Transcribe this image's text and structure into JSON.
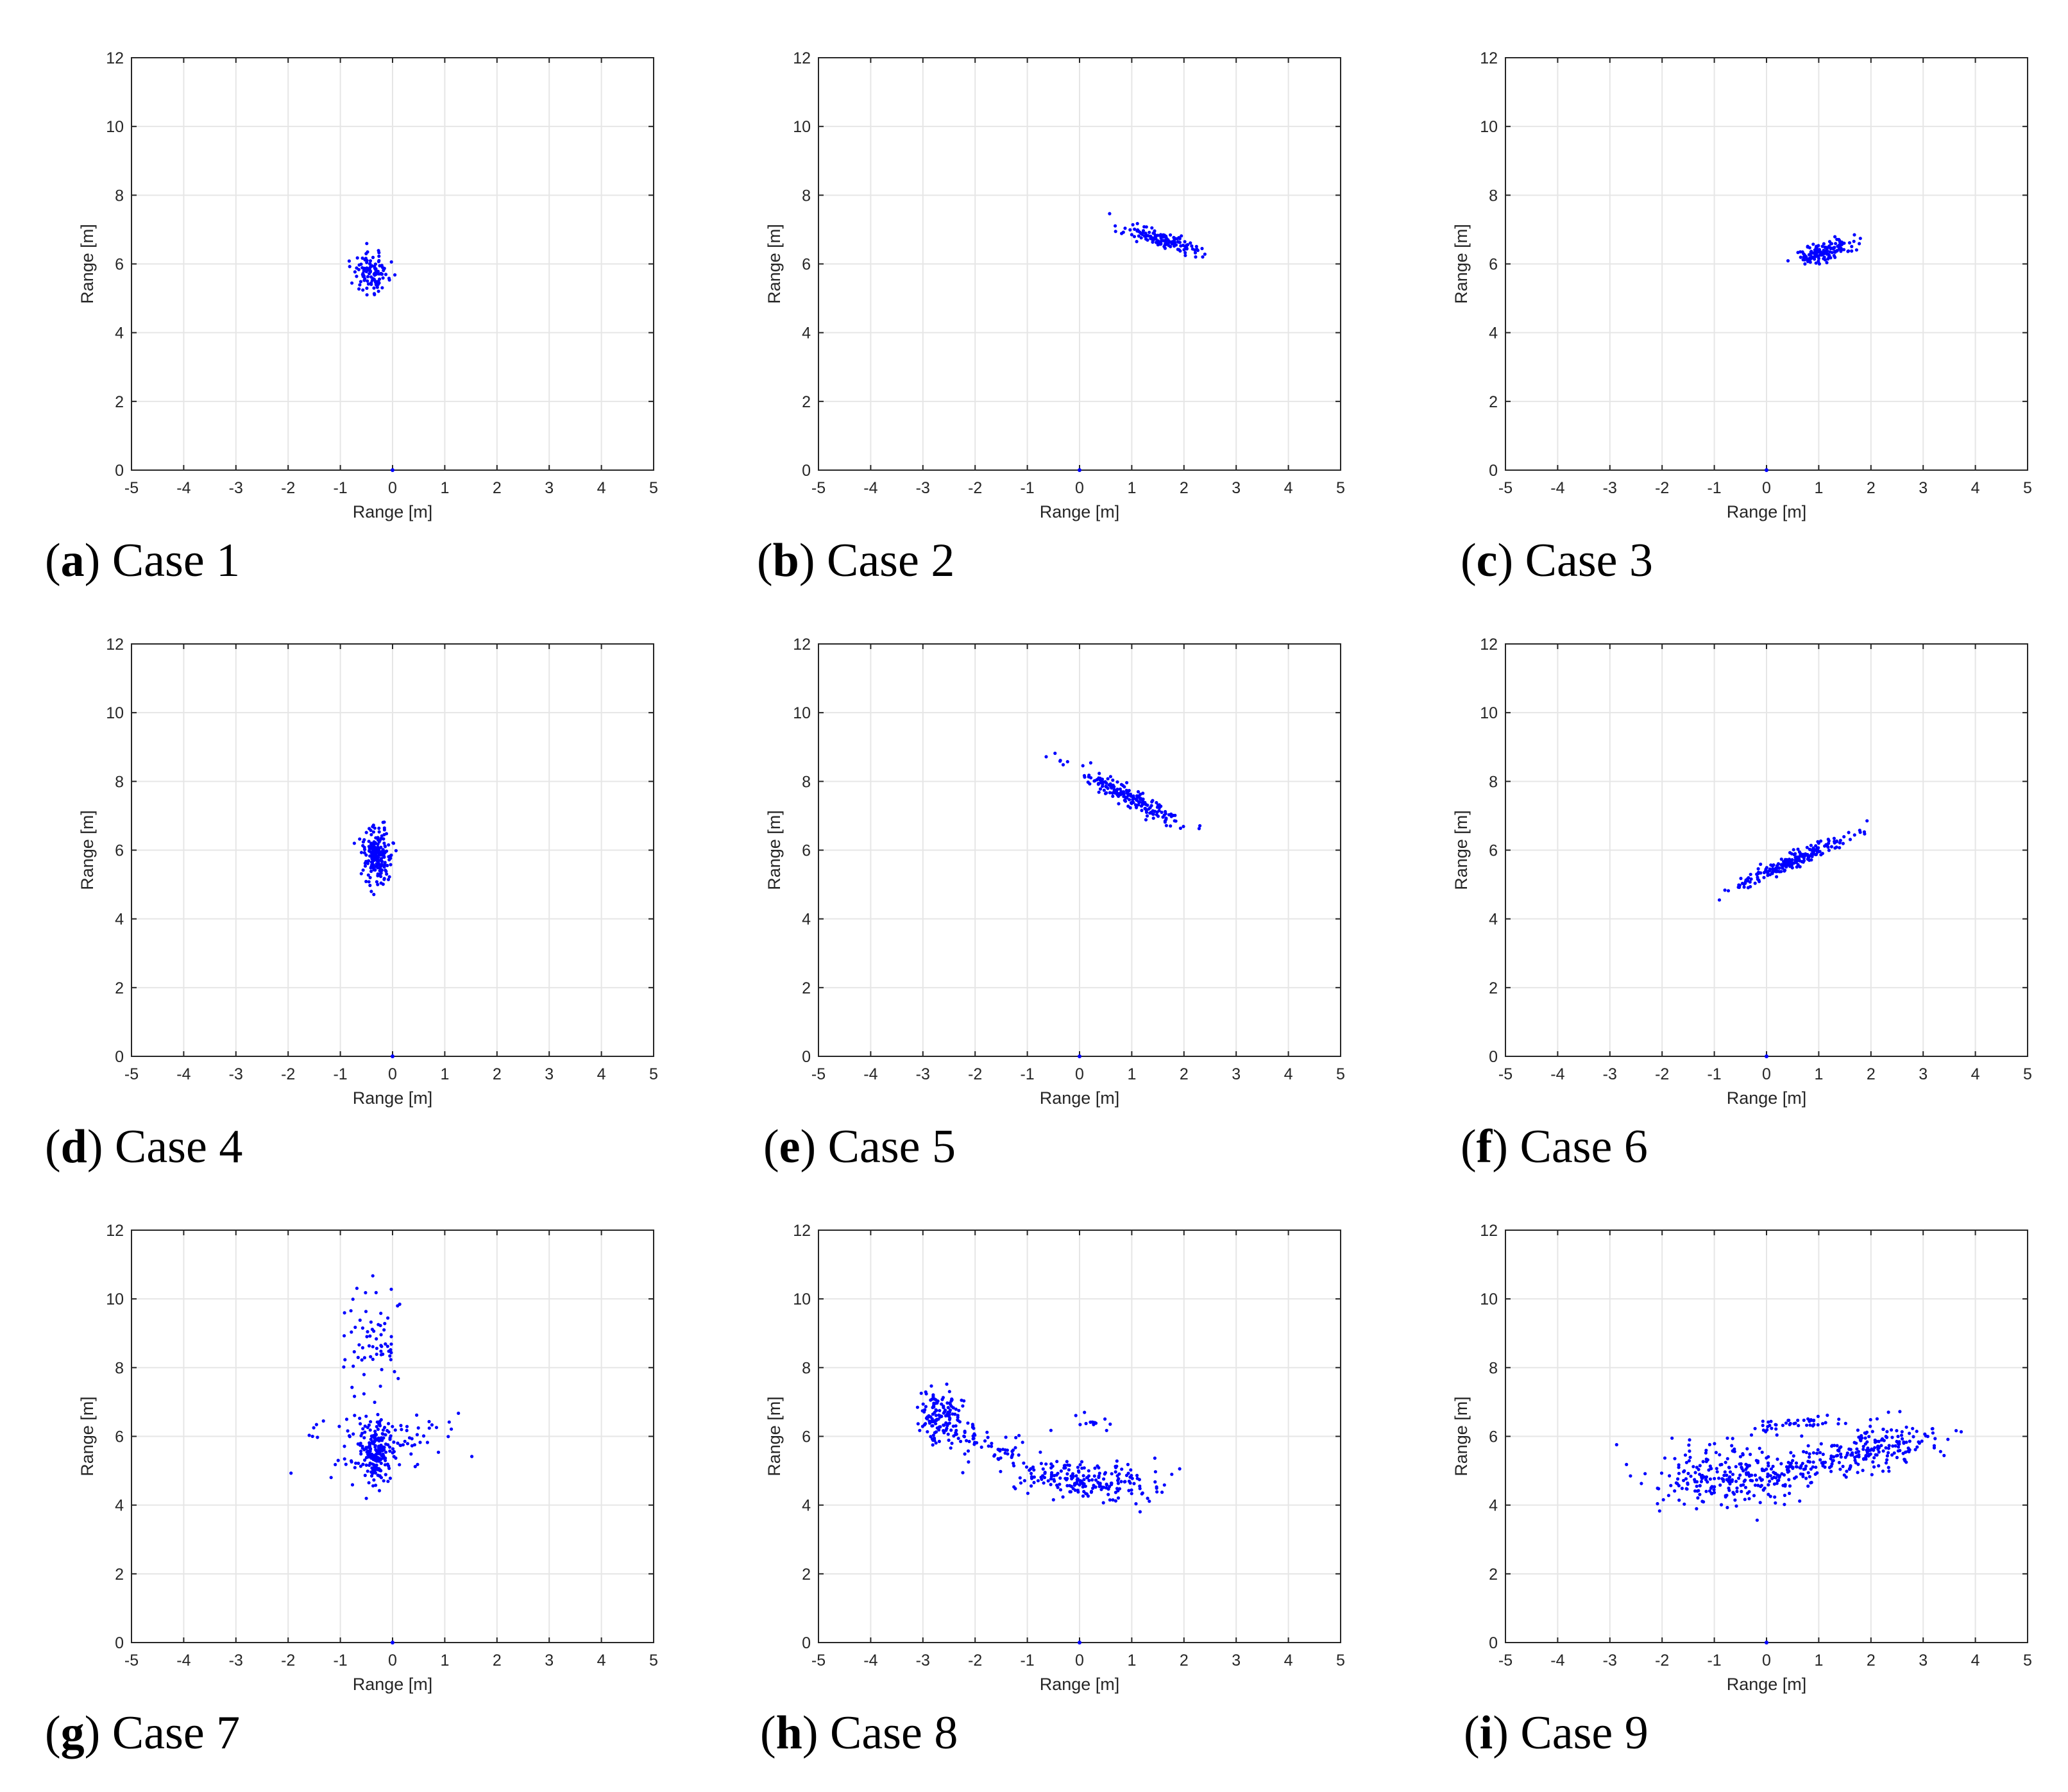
{
  "figure": {
    "axes_common": {
      "xlabel": "Range [m]",
      "ylabel": "Range [m]",
      "xlim": [
        -5,
        5
      ],
      "ylim": [
        0,
        12
      ],
      "xticks": [
        -5,
        -4,
        -3,
        -2,
        -1,
        0,
        1,
        2,
        3,
        4,
        5
      ],
      "yticks": [
        0,
        2,
        4,
        6,
        8,
        10,
        12
      ],
      "grid": true,
      "point_color": "#0000ff",
      "gridline_color": "#e6e6e6",
      "axis_color": "#262626"
    }
  },
  "chart_data": [
    {
      "type": "scatter",
      "letter": "a",
      "title": "Case 1",
      "xlabel": "Range [m]",
      "ylabel": "Range [m]",
      "xlim": [
        -5,
        5
      ],
      "ylim": [
        0,
        12
      ],
      "origin": [
        0,
        0
      ],
      "clusters": [
        {
          "cx": -0.4,
          "cy": 5.75,
          "sx": 0.17,
          "sy": 0.28,
          "rho": 0.0,
          "n": 110
        }
      ]
    },
    {
      "type": "scatter",
      "letter": "b",
      "title": "Case 2",
      "xlabel": "Range [m]",
      "ylabel": "Range [m]",
      "xlim": [
        -5,
        5
      ],
      "ylim": [
        0,
        12
      ],
      "origin": [
        0,
        0
      ],
      "clusters": [
        {
          "cx": 1.55,
          "cy": 6.7,
          "sx": 0.35,
          "sy": 0.2,
          "rho": -0.8,
          "n": 140
        }
      ]
    },
    {
      "type": "scatter",
      "letter": "c",
      "title": "Case 3",
      "xlabel": "Range [m]",
      "ylabel": "Range [m]",
      "xlim": [
        -5,
        5
      ],
      "ylim": [
        0,
        12
      ],
      "origin": [
        0,
        0
      ],
      "clusters": [
        {
          "cx": 1.1,
          "cy": 6.35,
          "sx": 0.28,
          "sy": 0.18,
          "rho": 0.6,
          "n": 150
        }
      ]
    },
    {
      "type": "scatter",
      "letter": "d",
      "title": "Case 4",
      "xlabel": "Range [m]",
      "ylabel": "Range [m]",
      "xlim": [
        -5,
        5
      ],
      "ylim": [
        0,
        12
      ],
      "origin": [
        0,
        0
      ],
      "clusters": [
        {
          "cx": -0.3,
          "cy": 5.85,
          "sx": 0.15,
          "sy": 0.4,
          "rho": 0.0,
          "n": 190
        }
      ]
    },
    {
      "type": "scatter",
      "letter": "e",
      "title": "Case 5",
      "xlabel": "Range [m]",
      "ylabel": "Range [m]",
      "xlim": [
        -5,
        5
      ],
      "ylim": [
        0,
        12
      ],
      "origin": [
        0,
        0
      ],
      "clusters": [
        {
          "cx": 1.0,
          "cy": 7.5,
          "sx": 0.55,
          "sy": 0.45,
          "rho": -0.95,
          "n": 200
        }
      ]
    },
    {
      "type": "scatter",
      "letter": "f",
      "title": "Case 6",
      "xlabel": "Range [m]",
      "ylabel": "Range [m]",
      "xlim": [
        -5,
        5
      ],
      "ylim": [
        0,
        12
      ],
      "origin": [
        0,
        0
      ],
      "clusters": [
        {
          "cx": 0.45,
          "cy": 5.65,
          "sx": 0.5,
          "sy": 0.35,
          "rho": 0.95,
          "n": 220
        }
      ]
    },
    {
      "type": "scatter",
      "letter": "g",
      "title": "Case 7",
      "xlabel": "Range [m]",
      "ylabel": "Range [m]",
      "xlim": [
        -5,
        5
      ],
      "ylim": [
        0,
        12
      ],
      "origin": [
        0,
        0
      ],
      "clusters": [
        {
          "cx": -0.35,
          "cy": 5.5,
          "sx": 0.15,
          "sy": 0.5,
          "rho": 0.0,
          "n": 160
        },
        {
          "cx": -0.3,
          "cy": 5.85,
          "sx": 0.65,
          "sy": 0.4,
          "rho": 0.0,
          "n": 110
        },
        {
          "cx": -0.35,
          "cy": 8.7,
          "sx": 0.3,
          "sy": 0.9,
          "rho": 0.0,
          "n": 70
        }
      ]
    },
    {
      "type": "scatter",
      "letter": "h",
      "title": "Case 8",
      "xlabel": "Range [m]",
      "ylabel": "Range [m]",
      "xlim": [
        -5,
        5
      ],
      "ylim": [
        0,
        12
      ],
      "origin": [
        0,
        0
      ],
      "clusters": [
        {
          "cx": -2.7,
          "cy": 6.6,
          "sx": 0.2,
          "sy": 0.35,
          "rho": 0.0,
          "n": 120
        },
        {
          "cx": -1.8,
          "cy": 5.8,
          "sx": 0.5,
          "sy": 0.35,
          "rho": -0.7,
          "n": 80
        },
        {
          "cx": 0.1,
          "cy": 4.7,
          "sx": 0.7,
          "sy": 0.3,
          "rho": -0.3,
          "n": 210
        },
        {
          "cx": 0.2,
          "cy": 6.45,
          "sx": 0.3,
          "sy": 0.12,
          "rho": 0.0,
          "n": 14
        }
      ]
    },
    {
      "type": "scatter",
      "letter": "i",
      "title": "Case 9",
      "xlabel": "Range [m]",
      "ylabel": "Range [m]",
      "xlim": [
        -5,
        5
      ],
      "ylim": [
        0,
        12
      ],
      "origin": [
        0,
        0
      ],
      "clusters": [
        {
          "cx": -0.8,
          "cy": 4.8,
          "sx": 0.75,
          "sy": 0.45,
          "rho": 0.0,
          "n": 210
        },
        {
          "cx": 1.1,
          "cy": 5.2,
          "sx": 1.0,
          "sy": 0.4,
          "rho": 0.75,
          "n": 180
        },
        {
          "cx": 2.3,
          "cy": 5.8,
          "sx": 0.5,
          "sy": 0.3,
          "rho": 0.2,
          "n": 110
        },
        {
          "cx": 0.5,
          "cy": 6.35,
          "sx": 0.45,
          "sy": 0.15,
          "rho": 0.3,
          "n": 45
        }
      ]
    }
  ]
}
